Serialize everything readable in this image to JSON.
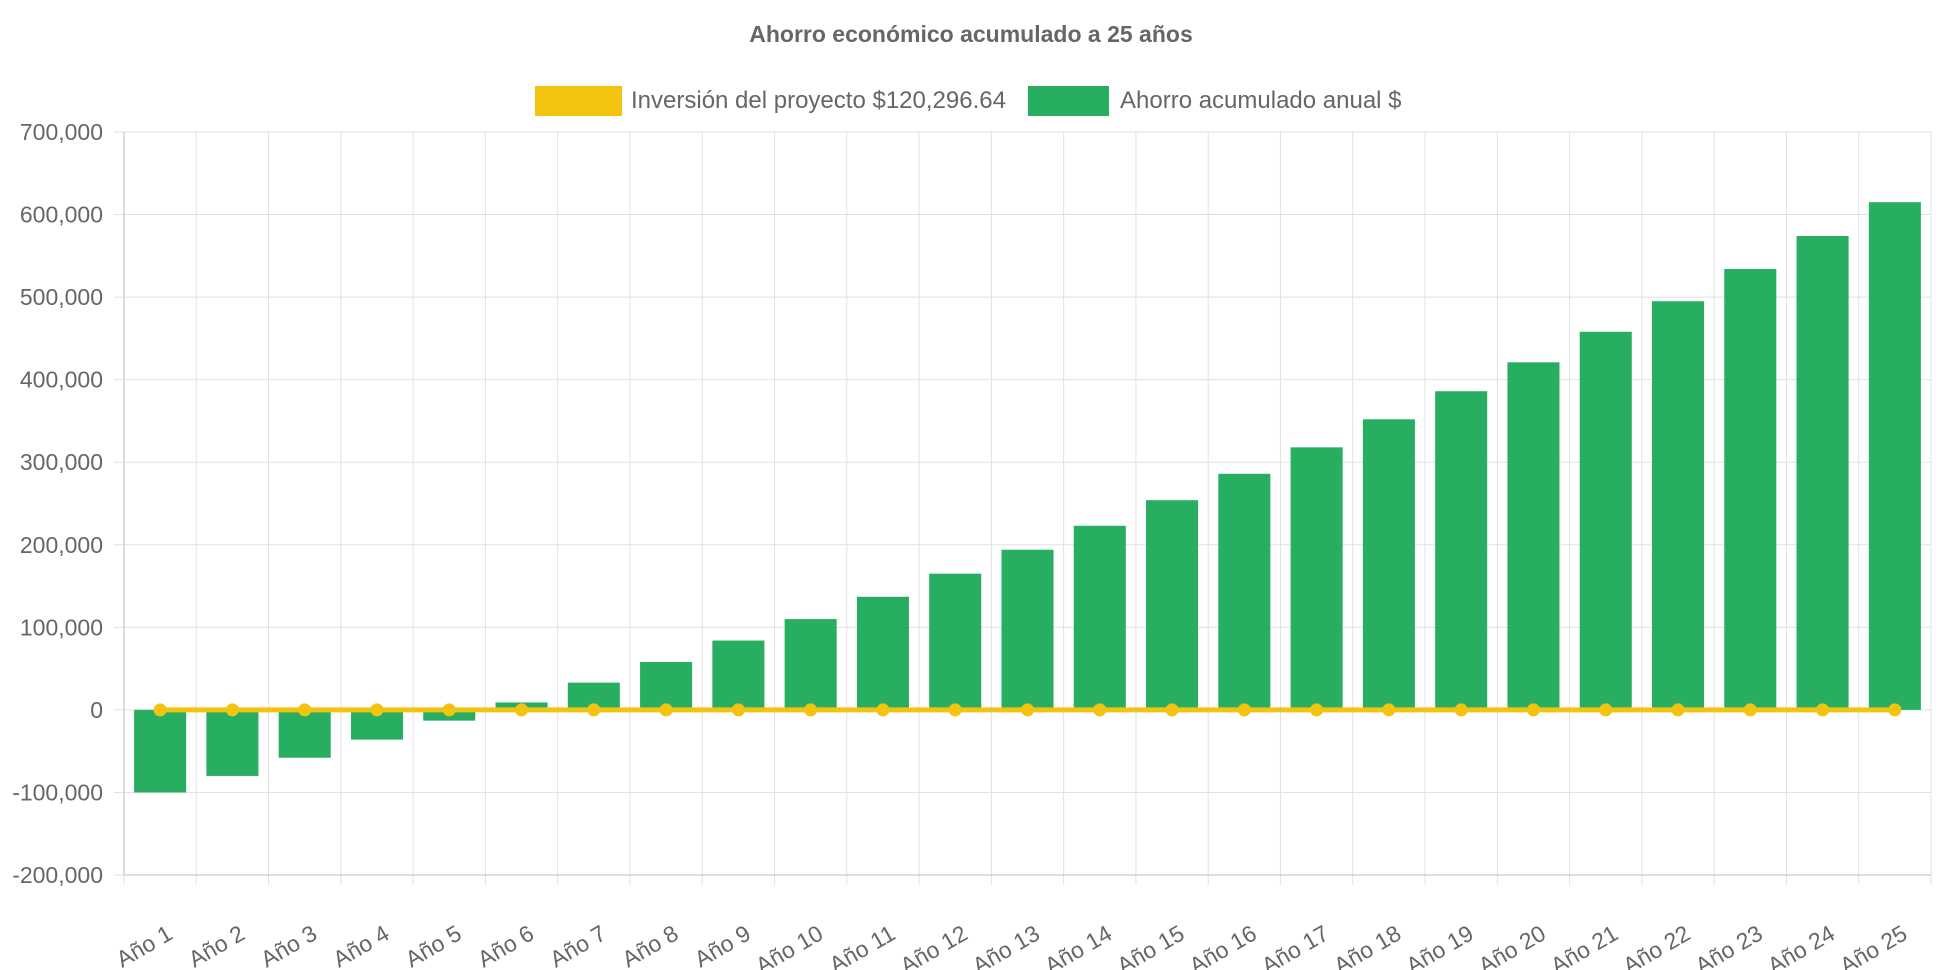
{
  "chart_data": {
    "type": "bar",
    "title": "Ahorro económico acumulado a 25 años",
    "categories": [
      "Año 1",
      "Año 2",
      "Año 3",
      "Año 4",
      "Año 5",
      "Año 6",
      "Año 7",
      "Año 8",
      "Año 9",
      "Año 10",
      "Año 11",
      "Año 12",
      "Año 13",
      "Año 14",
      "Año 15",
      "Año 16",
      "Año 17",
      "Año 18",
      "Año 19",
      "Año 20",
      "Año 21",
      "Año 22",
      "Año 23",
      "Año 24",
      "Año 25"
    ],
    "series": [
      {
        "name": "Inversión del proyecto $120,296.64",
        "kind": "line",
        "color": "#f2c40f",
        "values": [
          0,
          0,
          0,
          0,
          0,
          0,
          0,
          0,
          0,
          0,
          0,
          0,
          0,
          0,
          0,
          0,
          0,
          0,
          0,
          0,
          0,
          0,
          0,
          0,
          0
        ]
      },
      {
        "name": "Ahorro acumulado anual $",
        "kind": "bar",
        "color": "#27ae60",
        "values": [
          -100000,
          -80000,
          -58000,
          -36000,
          -13000,
          9000,
          33000,
          58000,
          84000,
          110000,
          137000,
          165000,
          194000,
          223000,
          254000,
          286000,
          318000,
          352000,
          386000,
          421000,
          458000,
          495000,
          534000,
          574000,
          615000
        ]
      }
    ],
    "xlabel": "",
    "ylabel": "",
    "ylim": [
      -200000,
      700000
    ],
    "yticks": [
      "700,000",
      "600,000",
      "500,000",
      "400,000",
      "300,000",
      "200,000",
      "100,000",
      "0",
      "-100,000",
      "-200,000"
    ],
    "grid": true,
    "legend_position": "top"
  }
}
